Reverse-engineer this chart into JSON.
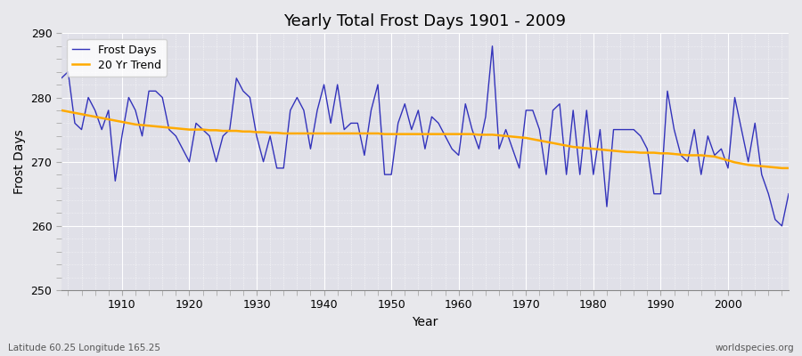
{
  "title": "Yearly Total Frost Days 1901 - 2009",
  "xlabel": "Year",
  "ylabel": "Frost Days",
  "bottom_left_label": "Latitude 60.25 Longitude 165.25",
  "bottom_right_label": "worldspecies.org",
  "legend_labels": [
    "Frost Days",
    "20 Yr Trend"
  ],
  "frost_color": "#3333bb",
  "trend_color": "#ffaa00",
  "bg_color": "#e8e8ec",
  "plot_bg_color": "#e0e0e8",
  "ylim": [
    250,
    290
  ],
  "xlim": [
    1901,
    2009
  ],
  "years": [
    1901,
    1902,
    1903,
    1904,
    1905,
    1906,
    1907,
    1908,
    1909,
    1910,
    1911,
    1912,
    1913,
    1914,
    1915,
    1916,
    1917,
    1918,
    1919,
    1920,
    1921,
    1922,
    1923,
    1924,
    1925,
    1926,
    1927,
    1928,
    1929,
    1930,
    1931,
    1932,
    1933,
    1934,
    1935,
    1936,
    1937,
    1938,
    1939,
    1940,
    1941,
    1942,
    1943,
    1944,
    1945,
    1946,
    1947,
    1948,
    1949,
    1950,
    1951,
    1952,
    1953,
    1954,
    1955,
    1956,
    1957,
    1958,
    1959,
    1960,
    1961,
    1962,
    1963,
    1964,
    1965,
    1966,
    1967,
    1968,
    1969,
    1970,
    1971,
    1972,
    1973,
    1974,
    1975,
    1976,
    1977,
    1978,
    1979,
    1980,
    1981,
    1982,
    1983,
    1984,
    1985,
    1986,
    1987,
    1988,
    1989,
    1990,
    1991,
    1992,
    1993,
    1994,
    1995,
    1996,
    1997,
    1998,
    1999,
    2000,
    2001,
    2002,
    2003,
    2004,
    2005,
    2006,
    2007,
    2008,
    2009
  ],
  "frost_days": [
    283,
    284,
    276,
    275,
    280,
    278,
    275,
    278,
    267,
    274,
    280,
    278,
    274,
    281,
    281,
    280,
    275,
    274,
    272,
    270,
    276,
    275,
    274,
    270,
    274,
    275,
    283,
    281,
    280,
    274,
    270,
    274,
    269,
    269,
    278,
    280,
    278,
    272,
    278,
    282,
    276,
    282,
    275,
    276,
    276,
    271,
    278,
    282,
    268,
    268,
    276,
    279,
    275,
    278,
    272,
    277,
    276,
    274,
    272,
    271,
    279,
    275,
    272,
    277,
    288,
    272,
    275,
    272,
    269,
    278,
    278,
    275,
    268,
    278,
    279,
    268,
    278,
    268,
    278,
    268,
    275,
    263,
    275,
    275,
    275,
    275,
    274,
    272,
    265,
    265,
    281,
    275,
    271,
    270,
    275,
    268,
    274,
    271,
    272,
    269,
    280,
    275,
    270,
    276,
    268,
    265,
    261,
    260,
    265
  ],
  "trend": [
    278.0,
    277.8,
    277.6,
    277.4,
    277.2,
    277.0,
    276.8,
    276.6,
    276.4,
    276.2,
    276.0,
    275.8,
    275.7,
    275.6,
    275.5,
    275.4,
    275.3,
    275.2,
    275.1,
    275.0,
    275.0,
    275.0,
    274.9,
    274.9,
    274.8,
    274.8,
    274.8,
    274.7,
    274.7,
    274.6,
    274.6,
    274.5,
    274.5,
    274.4,
    274.4,
    274.4,
    274.4,
    274.4,
    274.4,
    274.4,
    274.4,
    274.4,
    274.4,
    274.4,
    274.4,
    274.4,
    274.4,
    274.4,
    274.3,
    274.3,
    274.3,
    274.3,
    274.3,
    274.3,
    274.3,
    274.3,
    274.3,
    274.3,
    274.3,
    274.3,
    274.3,
    274.3,
    274.2,
    274.2,
    274.2,
    274.1,
    274.0,
    273.9,
    273.8,
    273.7,
    273.5,
    273.3,
    273.1,
    272.9,
    272.7,
    272.5,
    272.3,
    272.2,
    272.1,
    272.0,
    271.9,
    271.8,
    271.7,
    271.6,
    271.5,
    271.5,
    271.4,
    271.4,
    271.4,
    271.3,
    271.3,
    271.2,
    271.1,
    271.0,
    271.0,
    271.0,
    270.9,
    270.8,
    270.5,
    270.2,
    269.9,
    269.7,
    269.5,
    269.4,
    269.3,
    269.2,
    269.1,
    269.0,
    269.0
  ]
}
